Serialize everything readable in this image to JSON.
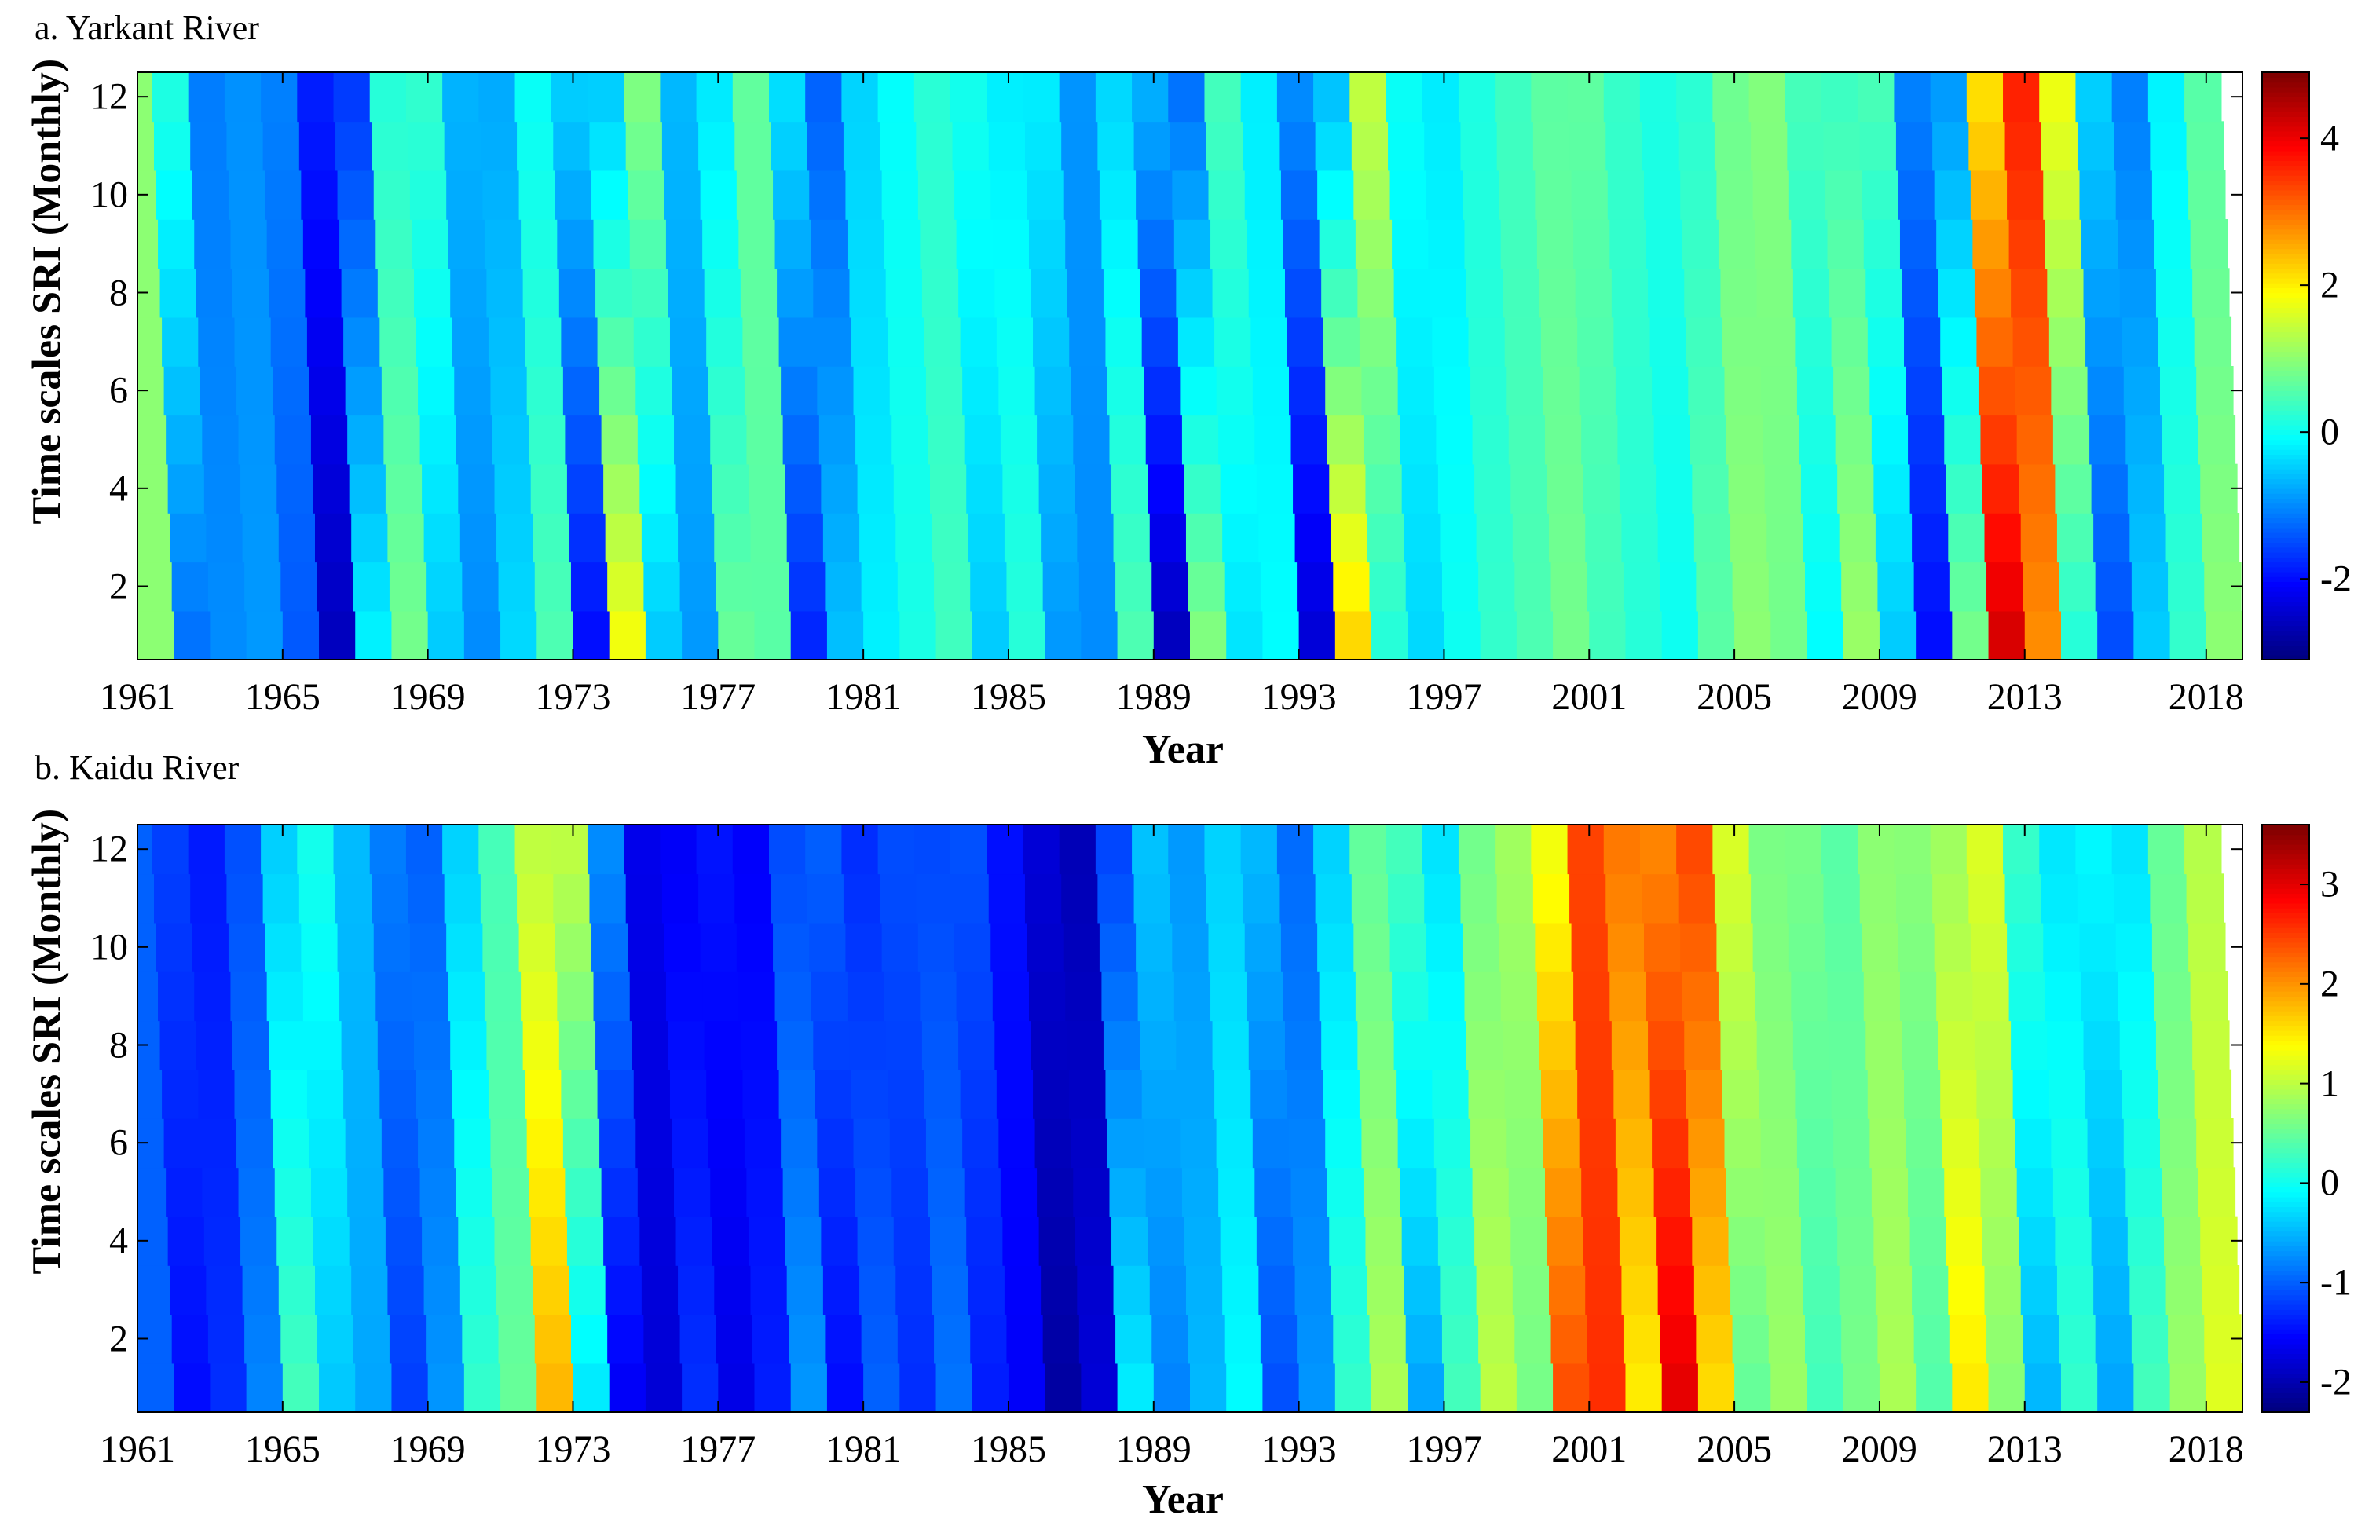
{
  "chart_data": [
    {
      "type": "heatmap",
      "title": "a. Yarkant River",
      "xlabel": "Year",
      "ylabel": "Time scales SRI (Monthly)",
      "xticks": [
        "1961",
        "1965",
        "1969",
        "1973",
        "1977",
        "1981",
        "1985",
        "1989",
        "1993",
        "1997",
        "2001",
        "2005",
        "2009",
        "2013",
        "2018"
      ],
      "xlim": [
        1961,
        2019
      ],
      "yticks": [
        2,
        4,
        6,
        8,
        10,
        12
      ],
      "ylim": [
        0.5,
        12.5
      ],
      "colorbar": {
        "ticks": [
          -2,
          0,
          2,
          4
        ],
        "range": [
          -3.1,
          4.9
        ],
        "colormap": "jet"
      },
      "x": [
        1961,
        1962,
        1963,
        1964,
        1965,
        1966,
        1967,
        1968,
        1969,
        1970,
        1971,
        1972,
        1973,
        1974,
        1975,
        1976,
        1977,
        1978,
        1979,
        1980,
        1981,
        1982,
        1983,
        1984,
        1985,
        1986,
        1987,
        1988,
        1989,
        1990,
        1991,
        1992,
        1993,
        1994,
        1995,
        1996,
        1997,
        1998,
        1999,
        2000,
        2001,
        2002,
        2003,
        2004,
        2005,
        2006,
        2007,
        2008,
        2009,
        2010,
        2011,
        2012,
        2013,
        2014,
        2015,
        2016,
        2017,
        2018
      ],
      "values": [
        1.0,
        -1.2,
        -1.0,
        -0.9,
        -1.4,
        -2.6,
        -0.2,
        0.8,
        -0.5,
        -1.0,
        -0.4,
        0.5,
        -2.0,
        1.8,
        -0.5,
        -0.9,
        0.7,
        0.6,
        -1.8,
        -0.6,
        -0.2,
        0.1,
        0.4,
        -0.5,
        0.2,
        -0.9,
        -1.0,
        0.5,
        -2.6,
        0.9,
        -0.3,
        -0.1,
        -2.4,
        2.2,
        0.2,
        -0.4,
        0.0,
        0.3,
        0.5,
        0.8,
        0.4,
        0.2,
        0.0,
        0.6,
        1.0,
        0.8,
        -0.1,
        1.1,
        -0.5,
        -2.0,
        0.8,
        4.2,
        2.8,
        0.2,
        -1.5,
        -0.5,
        0.3,
        1.0
      ]
    },
    {
      "type": "heatmap",
      "title": "b. Kaidu River",
      "xlabel": "Year",
      "ylabel": "Time scales SRI (Monthly)",
      "xticks": [
        "1961",
        "1965",
        "1969",
        "1973",
        "1977",
        "1981",
        "1985",
        "1989",
        "1993",
        "1997",
        "2001",
        "2005",
        "2009",
        "2013",
        "2018"
      ],
      "xlim": [
        1961,
        2019
      ],
      "yticks": [
        2,
        4,
        6,
        8,
        10,
        12
      ],
      "ylim": [
        0.5,
        12.5
      ],
      "colorbar": {
        "ticks": [
          -2,
          -1,
          0,
          1,
          2,
          3
        ],
        "range": [
          -2.3,
          3.6
        ],
        "colormap": "jet"
      },
      "x": [
        1961,
        1962,
        1963,
        1964,
        1965,
        1966,
        1967,
        1968,
        1969,
        1970,
        1971,
        1972,
        1973,
        1974,
        1975,
        1976,
        1977,
        1978,
        1979,
        1980,
        1981,
        1982,
        1983,
        1984,
        1985,
        1986,
        1987,
        1988,
        1989,
        1990,
        1991,
        1992,
        1993,
        1994,
        1995,
        1996,
        1997,
        1998,
        1999,
        2000,
        2001,
        2002,
        2003,
        2004,
        2005,
        2006,
        2007,
        2008,
        2009,
        2010,
        2011,
        2012,
        2013,
        2014,
        2015,
        2016,
        2017,
        2018
      ],
      "values": [
        -1.0,
        -1.5,
        -1.3,
        -0.8,
        0.3,
        -0.4,
        -0.6,
        -1.2,
        -0.7,
        0.2,
        0.5,
        1.8,
        -0.2,
        -1.6,
        -1.8,
        -1.3,
        -1.7,
        -1.4,
        -0.7,
        -1.5,
        -1.0,
        -1.3,
        -0.9,
        -1.4,
        -1.6,
        -2.1,
        -1.8,
        -0.2,
        -0.8,
        -0.5,
        -0.1,
        -1.1,
        -0.7,
        0.2,
        0.9,
        -0.6,
        0.3,
        1.0,
        0.6,
        2.4,
        2.6,
        1.5,
        3.0,
        1.6,
        0.5,
        0.8,
        0.3,
        0.6,
        0.9,
        0.4,
        1.5,
        0.7,
        -0.5,
        0.2,
        -0.6,
        0.3,
        0.8,
        1.2
      ]
    }
  ]
}
